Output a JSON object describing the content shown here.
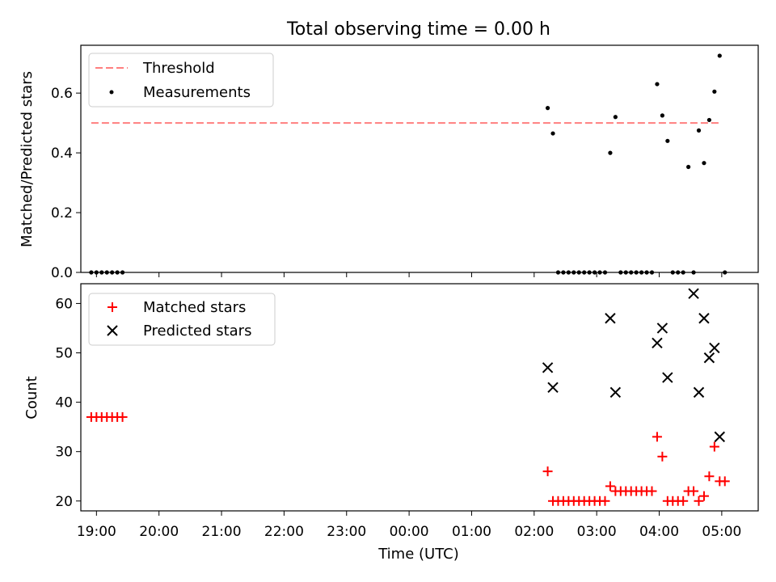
{
  "title": "Total observing time = 0.00 h",
  "colors": {
    "threshold": "#ff7f7f",
    "measurement": "#000000",
    "matched": "#ff0000",
    "predicted": "#000000"
  },
  "chart_data": [
    {
      "type": "scatter",
      "ylabel": "Matched/Predicted stars",
      "xlim": [
        "18:45",
        "05:35"
      ],
      "ylim": [
        0,
        0.76
      ],
      "yticks": [
        "0.0",
        "0.2",
        "0.4",
        "0.6"
      ],
      "ytick_values": [
        0,
        0.2,
        0.4,
        0.6
      ],
      "legend_position": "upper-left",
      "threshold": {
        "name": "Threshold",
        "value": 0.5,
        "x_start": "18:55",
        "x_end": "05:00"
      },
      "series": [
        {
          "name": "Measurements",
          "x": [
            "18:55",
            "19:00",
            "19:05",
            "19:10",
            "19:15",
            "19:20",
            "19:25",
            "02:13",
            "02:18",
            "02:23",
            "02:28",
            "02:33",
            "02:38",
            "02:43",
            "02:48",
            "02:53",
            "02:58",
            "03:03",
            "03:08",
            "03:13",
            "03:18",
            "03:23",
            "03:28",
            "03:33",
            "03:38",
            "03:43",
            "03:48",
            "03:53",
            "03:58",
            "04:03",
            "04:08",
            "04:13",
            "04:18",
            "04:23",
            "04:28",
            "04:33",
            "04:38",
            "04:43",
            "04:48",
            "04:53",
            "04:58",
            "05:03"
          ],
          "y": [
            0,
            0,
            0,
            0,
            0,
            0,
            0,
            0.55,
            0.465,
            0,
            0,
            0,
            0,
            0,
            0,
            0,
            0,
            0,
            0,
            0.4,
            0.52,
            0,
            0,
            0,
            0,
            0,
            0,
            0,
            0.63,
            0.525,
            0.44,
            0,
            0,
            0,
            0.353,
            0,
            0.475,
            0.366,
            0.51,
            0.605,
            0.725,
            0
          ]
        }
      ]
    },
    {
      "type": "scatter",
      "ylabel": "Count",
      "xlabel": "Time (UTC)",
      "xlim": [
        "18:45",
        "05:35"
      ],
      "ylim": [
        18,
        64
      ],
      "yticks": [
        "20",
        "30",
        "40",
        "50",
        "60"
      ],
      "ytick_values": [
        20,
        30,
        40,
        50,
        60
      ],
      "xticks": [
        "19:00",
        "20:00",
        "21:00",
        "22:00",
        "23:00",
        "00:00",
        "01:00",
        "02:00",
        "03:00",
        "04:00",
        "05:00"
      ],
      "legend_position": "upper-left",
      "series": [
        {
          "name": "Matched stars",
          "x": [
            "18:55",
            "19:00",
            "19:05",
            "19:10",
            "19:15",
            "19:20",
            "19:25",
            "02:13",
            "02:18",
            "02:23",
            "02:28",
            "02:33",
            "02:38",
            "02:43",
            "02:48",
            "02:53",
            "02:58",
            "03:03",
            "03:08",
            "03:13",
            "03:18",
            "03:23",
            "03:28",
            "03:33",
            "03:38",
            "03:43",
            "03:48",
            "03:53",
            "03:58",
            "04:03",
            "04:08",
            "04:13",
            "04:18",
            "04:23",
            "04:28",
            "04:33",
            "04:38",
            "04:43",
            "04:48",
            "04:53",
            "04:58",
            "05:03"
          ],
          "y": [
            37,
            37,
            37,
            37,
            37,
            37,
            37,
            26,
            20,
            20,
            20,
            20,
            20,
            20,
            20,
            20,
            20,
            20,
            20,
            23,
            22,
            22,
            22,
            22,
            22,
            22,
            22,
            22,
            33,
            29,
            20,
            20,
            20,
            20,
            22,
            22,
            20,
            21,
            25,
            31,
            24,
            24
          ]
        },
        {
          "name": "Predicted stars",
          "x": [
            "02:13",
            "02:18",
            "03:13",
            "03:18",
            "03:58",
            "04:03",
            "04:08",
            "04:33",
            "04:38",
            "04:43",
            "04:48",
            "04:53",
            "04:58"
          ],
          "y": [
            47,
            43,
            57,
            42,
            52,
            55,
            45,
            62,
            42,
            57,
            49,
            51,
            33
          ]
        }
      ]
    }
  ]
}
